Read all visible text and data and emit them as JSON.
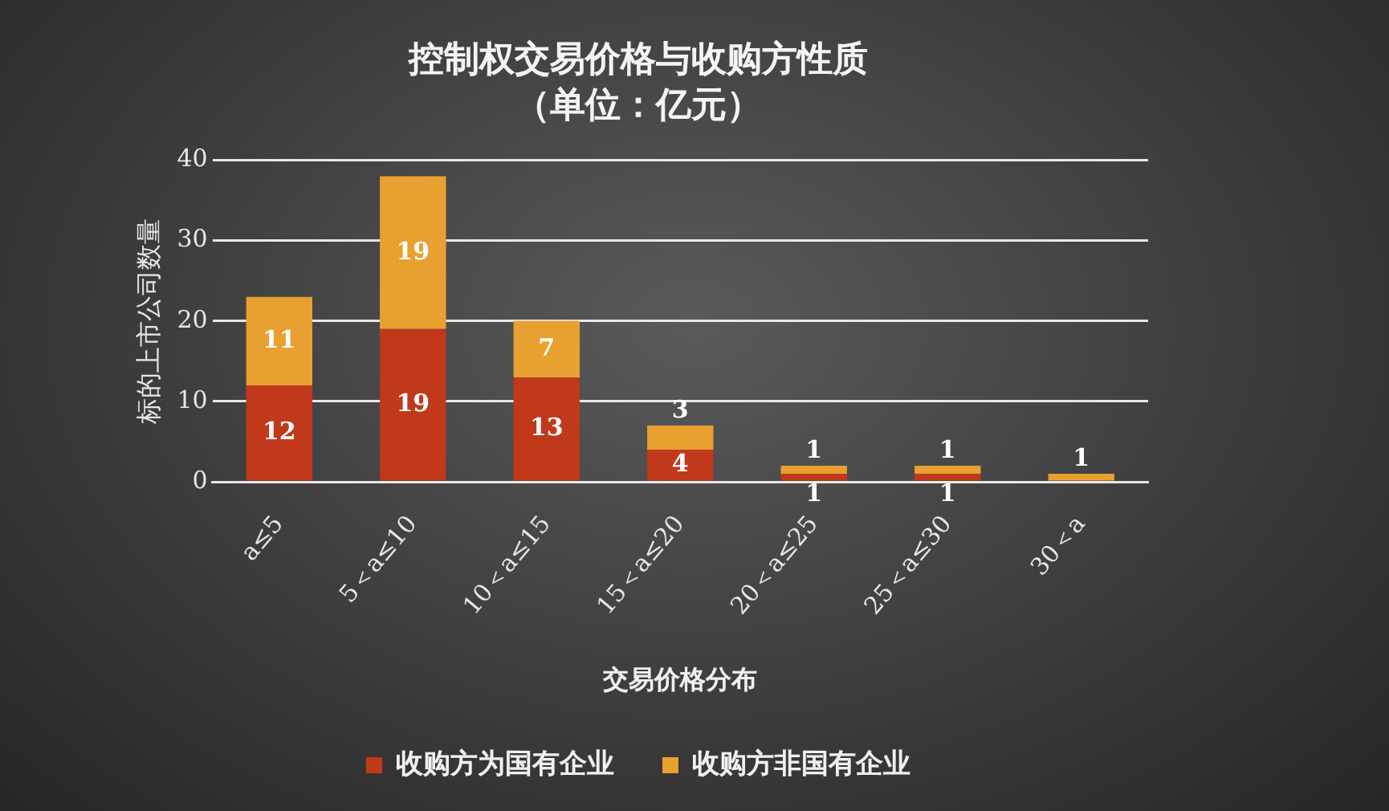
{
  "chart_data": {
    "type": "bar",
    "title": "控制权交易价格与收购方性质",
    "subtitle": "（单位：亿元）",
    "xlabel": "交易价格分布",
    "ylabel": "标的上市公司数量",
    "categories": [
      "a≤5",
      "5＜a≤10",
      "10＜a≤15",
      "15＜a≤20",
      "20＜a≤25",
      "25＜a≤30",
      "30＜a"
    ],
    "series": [
      {
        "name": "收购方为国有企业",
        "color": "#c0391b",
        "values": [
          12,
          19,
          13,
          4,
          1,
          1,
          null
        ]
      },
      {
        "name": "收购方非国有企业",
        "color": "#e8a030",
        "values": [
          11,
          19,
          7,
          3,
          1,
          1,
          1
        ]
      }
    ],
    "stacked": true,
    "ylim": [
      0,
      40
    ],
    "yticks": [
      0,
      10,
      20,
      30,
      40
    ],
    "grid": "y",
    "legend": "bottom",
    "data_labels": true
  }
}
